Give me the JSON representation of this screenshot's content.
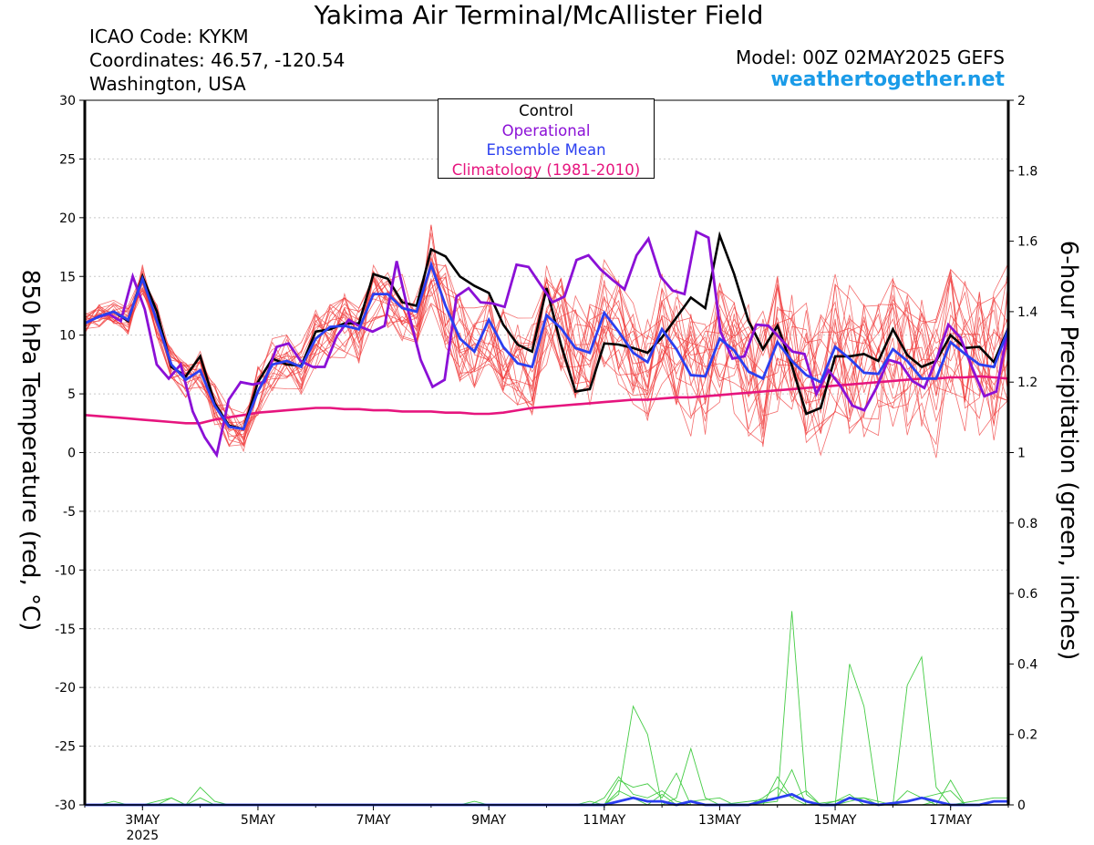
{
  "header": {
    "title": "Yakima Air Terminal/McAllister Field",
    "icao": "ICAO Code: KYKM",
    "coordinates": "Coordinates: 46.57, -120.54",
    "region": "Washington, USA",
    "model": "Model: 00Z 02MAY2025 GEFS",
    "site": "weathertogether.net"
  },
  "chart_data": {
    "type": "line",
    "ylabel": "850 hPa Temperature (red, °C)",
    "y2label": "6-hour Precipitation (green, inches)",
    "ylim": [
      -30,
      30
    ],
    "y2lim": [
      0,
      2
    ],
    "yticks": [
      "30",
      "25",
      "20",
      "15",
      "10",
      "5",
      "0",
      "-5",
      "-10",
      "-15",
      "-20",
      "-25",
      "-30"
    ],
    "y2ticks": [
      "2",
      "1.8",
      "1.6",
      "1.4",
      "1.2",
      "1",
      "0.8",
      "0.6",
      "0.4",
      "0.2",
      "0"
    ],
    "xticks": [
      {
        "label": "3MAY",
        "sub": "2025",
        "day": 3
      },
      {
        "label": "5MAY",
        "sub": "",
        "day": 5
      },
      {
        "label": "7MAY",
        "sub": "",
        "day": 7
      },
      {
        "label": "9MAY",
        "sub": "",
        "day": 9
      },
      {
        "label": "11MAY",
        "sub": "",
        "day": 11
      },
      {
        "label": "13MAY",
        "sub": "",
        "day": 13
      },
      {
        "label": "15MAY",
        "sub": "",
        "day": 15
      },
      {
        "label": "17MAY",
        "sub": "",
        "day": 17
      }
    ],
    "x_range_days": [
      2.0,
      18.0
    ],
    "step_days": 0.25,
    "legend": [
      "Control",
      "Operational",
      "Ensemble Mean",
      "Climatology (1981-2010)"
    ],
    "colors": {
      "control": "#000000",
      "operational": "#8b10d6",
      "mean": "#2b3ff0",
      "climatology": "#e6157e",
      "members": "#f03c3c",
      "precip_members": "#44cc44",
      "precip_mean": "#2b3ff0"
    },
    "series": [
      {
        "name": "Control",
        "values": [
          11.0,
          11.6,
          12.0,
          11.2,
          15.0,
          12.0,
          7.3,
          6.5,
          8.2,
          4.2,
          2.3,
          2.0,
          6.0,
          8.0,
          7.5,
          7.4,
          10.3,
          10.5,
          11.0,
          11.0,
          15.2,
          14.8,
          12.8,
          12.5,
          17.3,
          16.7,
          15.0,
          14.2,
          13.6,
          10.9,
          9.2,
          8.6,
          14.0,
          9.2,
          5.2,
          5.4,
          9.3,
          9.2,
          8.9,
          8.5,
          9.8,
          11.5,
          13.2,
          12.3,
          18.5,
          15.2,
          11.2,
          8.8,
          10.8,
          7.4,
          3.3,
          3.8,
          8.2,
          8.2,
          8.4,
          7.8,
          10.5,
          8.3,
          7.3,
          7.8,
          10.0,
          8.9,
          9.0,
          7.7,
          10.6
        ]
      },
      {
        "name": "Operational",
        "values": [
          11.0,
          11.5,
          11.8,
          11.2,
          15.0,
          12.2,
          7.5,
          6.3,
          7.5,
          3.5,
          1.3,
          -0.2,
          4.5,
          6.0,
          5.8,
          6.0,
          9.0,
          9.3,
          7.8,
          7.3,
          7.3,
          9.9,
          11.3,
          10.7,
          10.3,
          10.8,
          16.3,
          11.9,
          7.9,
          5.6,
          6.2,
          13.3,
          14.0,
          12.8,
          12.7,
          12.4,
          16.0,
          15.8,
          14.3,
          12.8,
          13.3,
          16.4,
          16.8,
          15.6,
          14.7,
          13.9,
          16.8,
          18.2,
          15.0,
          13.8,
          13.5,
          18.8,
          18.3,
          10.3,
          8.0,
          8.2,
          10.9,
          10.8,
          9.7,
          8.6,
          8.4,
          5.0,
          7.0,
          5.7,
          4.0,
          3.6,
          5.5,
          7.9,
          7.6,
          6.1,
          5.5,
          7.9,
          10.9,
          9.8,
          7.2,
          4.8,
          5.2,
          10.7
        ]
      },
      {
        "name": "Ensemble Mean",
        "values": [
          11.0,
          11.6,
          12.0,
          11.3,
          14.8,
          11.2,
          7.5,
          6.2,
          7.0,
          4.0,
          2.2,
          2.0,
          5.2,
          7.5,
          7.8,
          7.3,
          9.7,
          10.7,
          10.8,
          10.5,
          13.5,
          13.5,
          12.3,
          12.0,
          16.0,
          12.5,
          9.7,
          8.6,
          11.3,
          9.0,
          7.6,
          7.3,
          11.7,
          10.6,
          8.9,
          8.5,
          11.9,
          10.3,
          8.5,
          7.7,
          10.5,
          8.8,
          6.6,
          6.5,
          9.7,
          8.7,
          6.9,
          6.3,
          9.4,
          7.8,
          6.6,
          6.0,
          9.0,
          8.0,
          6.8,
          6.7,
          8.8,
          7.8,
          6.3,
          6.3,
          9.4,
          8.4,
          7.5,
          7.3,
          10.5
        ]
      },
      {
        "name": "Climatology (1981-2010)",
        "values": [
          3.2,
          3.1,
          3.0,
          2.9,
          2.8,
          2.7,
          2.6,
          2.5,
          2.5,
          2.8,
          3.0,
          3.2,
          3.4,
          3.5,
          3.6,
          3.7,
          3.8,
          3.8,
          3.7,
          3.7,
          3.6,
          3.6,
          3.5,
          3.5,
          3.5,
          3.4,
          3.4,
          3.3,
          3.3,
          3.4,
          3.6,
          3.8,
          3.9,
          4.0,
          4.1,
          4.2,
          4.3,
          4.4,
          4.5,
          4.5,
          4.6,
          4.7,
          4.7,
          4.8,
          4.9,
          5.0,
          5.1,
          5.2,
          5.3,
          5.4,
          5.5,
          5.6,
          5.7,
          5.8,
          5.9,
          6.0,
          6.1,
          6.2,
          6.3,
          6.3,
          6.4,
          6.4,
          6.5,
          6.4,
          6.3
        ]
      }
    ],
    "precip_members": [
      {
        "points": [
          [
            2.0,
            0
          ],
          [
            2.25,
            0
          ],
          [
            2.5,
            0.01
          ],
          [
            2.75,
            0
          ],
          [
            3.0,
            0
          ],
          [
            3.25,
            0
          ],
          [
            3.5,
            0.02
          ],
          [
            3.75,
            0
          ],
          [
            4.0,
            0.05
          ],
          [
            4.25,
            0.01
          ],
          [
            4.5,
            0
          ],
          [
            5.0,
            0
          ],
          [
            9.0,
            0
          ],
          [
            10.75,
            0
          ],
          [
            11.0,
            0.02
          ],
          [
            11.25,
            0.08
          ],
          [
            11.5,
            0.03
          ],
          [
            11.75,
            0.02
          ],
          [
            12.0,
            0.04
          ],
          [
            12.25,
            0.01
          ],
          [
            12.5,
            0
          ],
          [
            13.0,
            0
          ],
          [
            13.5,
            0
          ],
          [
            14.0,
            0.01
          ],
          [
            14.25,
            0.55
          ],
          [
            14.5,
            0.03
          ],
          [
            14.75,
            0
          ],
          [
            15.0,
            0
          ],
          [
            15.25,
            0.4
          ],
          [
            15.5,
            0.28
          ],
          [
            15.75,
            0
          ],
          [
            16.0,
            0
          ],
          [
            16.25,
            0.34
          ],
          [
            16.5,
            0.42
          ],
          [
            16.75,
            0.05
          ],
          [
            17.0,
            0
          ],
          [
            18.0,
            0
          ]
        ]
      },
      {
        "points": [
          [
            2.0,
            0
          ],
          [
            8.5,
            0
          ],
          [
            8.75,
            0.01
          ],
          [
            9.0,
            0
          ],
          [
            11.0,
            0
          ],
          [
            11.25,
            0.03
          ],
          [
            11.5,
            0.28
          ],
          [
            11.75,
            0.2
          ],
          [
            12.0,
            0
          ],
          [
            12.25,
            0.02
          ],
          [
            12.5,
            0.16
          ],
          [
            12.75,
            0.02
          ],
          [
            13.0,
            0
          ],
          [
            14.0,
            0.02
          ],
          [
            14.25,
            0.1
          ],
          [
            14.5,
            0
          ],
          [
            15.0,
            0
          ],
          [
            15.25,
            0.01
          ],
          [
            15.5,
            0.02
          ],
          [
            16.0,
            0
          ],
          [
            17.0,
            0.04
          ],
          [
            17.25,
            0
          ],
          [
            18.0,
            0
          ]
        ]
      },
      {
        "points": [
          [
            2.0,
            0
          ],
          [
            3.0,
            0
          ],
          [
            3.25,
            0.01
          ],
          [
            3.5,
            0.02
          ],
          [
            3.75,
            0
          ],
          [
            4.0,
            0.02
          ],
          [
            4.25,
            0
          ],
          [
            11.0,
            0
          ],
          [
            11.25,
            0.07
          ],
          [
            11.5,
            0.05
          ],
          [
            11.75,
            0.06
          ],
          [
            12.0,
            0.02
          ],
          [
            12.25,
            0.09
          ],
          [
            12.5,
            0
          ],
          [
            13.5,
            0
          ],
          [
            13.75,
            0.02
          ],
          [
            14.0,
            0.05
          ],
          [
            14.25,
            0.02
          ],
          [
            14.5,
            0.04
          ],
          [
            14.75,
            0
          ],
          [
            15.25,
            0.02
          ],
          [
            15.5,
            0.02
          ],
          [
            15.75,
            0
          ],
          [
            16.0,
            0
          ],
          [
            16.25,
            0.04
          ],
          [
            16.5,
            0.02
          ],
          [
            16.75,
            0
          ],
          [
            17.0,
            0.07
          ],
          [
            17.25,
            0
          ],
          [
            18.0,
            0
          ]
        ]
      },
      {
        "points": [
          [
            2.0,
            0
          ],
          [
            10.5,
            0
          ],
          [
            10.75,
            0.01
          ],
          [
            11.0,
            0
          ],
          [
            11.25,
            0.04
          ],
          [
            11.5,
            0.02
          ],
          [
            11.75,
            0
          ],
          [
            12.0,
            0.03
          ],
          [
            12.25,
            0
          ],
          [
            12.5,
            0.01
          ],
          [
            13.0,
            0.02
          ],
          [
            13.25,
            0
          ],
          [
            13.75,
            0
          ],
          [
            14.0,
            0.08
          ],
          [
            14.25,
            0.02
          ],
          [
            14.5,
            0
          ],
          [
            15.0,
            0.01
          ],
          [
            15.25,
            0.03
          ],
          [
            15.5,
            0
          ],
          [
            16.5,
            0
          ],
          [
            16.75,
            0.01
          ],
          [
            17.0,
            0
          ],
          [
            17.75,
            0.02
          ],
          [
            18.0,
            0.02
          ]
        ]
      }
    ],
    "precip_mean": {
      "points": [
        [
          2.0,
          0
        ],
        [
          9.0,
          0
        ],
        [
          11.0,
          0
        ],
        [
          11.25,
          0.01
        ],
        [
          11.5,
          0.02
        ],
        [
          11.75,
          0.01
        ],
        [
          12.0,
          0.01
        ],
        [
          12.25,
          0.0
        ],
        [
          12.5,
          0.01
        ],
        [
          12.75,
          0
        ],
        [
          13.5,
          0
        ],
        [
          13.75,
          0.01
        ],
        [
          14.0,
          0.02
        ],
        [
          14.25,
          0.03
        ],
        [
          14.5,
          0.01
        ],
        [
          14.75,
          0
        ],
        [
          15.0,
          0
        ],
        [
          15.25,
          0.02
        ],
        [
          15.5,
          0.01
        ],
        [
          15.75,
          0
        ],
        [
          16.25,
          0.01
        ],
        [
          16.5,
          0.02
        ],
        [
          16.75,
          0.01
        ],
        [
          17.0,
          0
        ],
        [
          17.5,
          0
        ],
        [
          17.75,
          0.01
        ],
        [
          18.0,
          0.01
        ]
      ]
    }
  }
}
